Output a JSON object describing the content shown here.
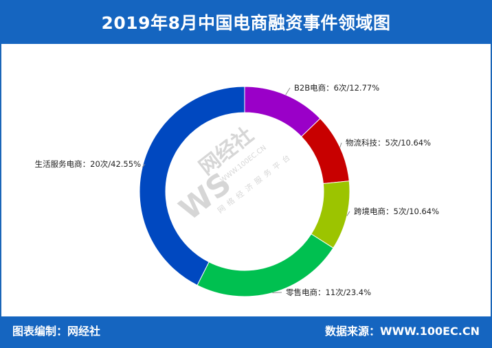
{
  "header": {
    "title": "2019年8月中国电商融资事件领域图"
  },
  "footer": {
    "left": "图表编制：网经社",
    "right": "数据来源：WWW.100EC.CN"
  },
  "watermark": {
    "logo": "WS",
    "name": "网经社",
    "url": "WWW.100EC.CN",
    "tagline": "网络经济服务平台"
  },
  "chart_data": {
    "type": "pie",
    "variant": "donut",
    "title": "2019年8月中国电商融资事件领域图",
    "series": [
      {
        "name": "B2B电商",
        "count": 6,
        "unit": "次",
        "percent": 12.77,
        "label": "B2B电商：6次/12.77%",
        "color": "#9a00c8"
      },
      {
        "name": "物流科技",
        "count": 5,
        "unit": "次",
        "percent": 10.64,
        "label": "物流科技：5次/10.64%",
        "color": "#c80000"
      },
      {
        "name": "跨境电商",
        "count": 5,
        "unit": "次",
        "percent": 10.64,
        "label": "跨境电商：5次/10.64%",
        "color": "#9cc400"
      },
      {
        "name": "零售电商",
        "count": 11,
        "unit": "次",
        "percent": 23.4,
        "label": "零售电商：11次/23.4%",
        "color": "#00c050"
      },
      {
        "name": "生活服务电商",
        "count": 20,
        "unit": "次",
        "percent": 42.55,
        "label": "生活服务电商：20次/42.55%",
        "color": "#0048c0"
      }
    ]
  }
}
